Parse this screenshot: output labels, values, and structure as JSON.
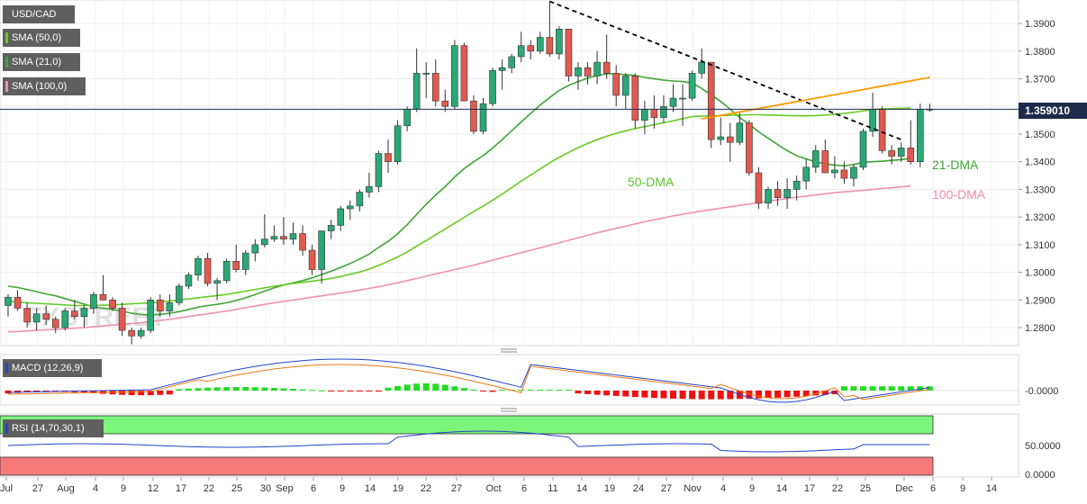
{
  "symbol": "USD/CAD",
  "price_label": "1.359010",
  "indicators": [
    {
      "label": "SMA (50,0)",
      "color": "#66cc22"
    },
    {
      "label": "SMA (21,0)",
      "color": "#3fa535"
    },
    {
      "label": "SMA (100,0)",
      "color": "#f090b0"
    }
  ],
  "macd": {
    "label": "MACD (12,26,9)",
    "axis": [
      "-0.0000"
    ]
  },
  "rsi": {
    "label": "RSI (14,70,30,1)",
    "axis": [
      "50.0000",
      "0.0000"
    ]
  },
  "watermark": "FXSTREET",
  "x_ticks": [
    "Jul",
    "27",
    "Aug",
    "4",
    "9",
    "12",
    "17",
    "22",
    "25",
    "30",
    "Sep",
    "6",
    "9",
    "14",
    "19",
    "22",
    "27",
    "Oct",
    "6",
    "11",
    "14",
    "19",
    "24",
    "27",
    "Nov",
    "4",
    "9",
    "14",
    "17",
    "22",
    "25",
    "Dec",
    "6",
    "9",
    "14"
  ],
  "chart_data": {
    "type": "candlestick",
    "ylim": [
      1.2735,
      1.3985
    ],
    "y_ticks": [
      1.39,
      1.38,
      1.37,
      1.36,
      1.35,
      1.34,
      1.33,
      1.32,
      1.31,
      1.3,
      1.29,
      1.28
    ],
    "y_tick_labels": [
      "1.3900",
      "1.3800",
      "1.3700",
      "1.3600",
      "1.3500",
      "1.3400",
      "1.3300",
      "1.3200",
      "1.3100",
      "1.3000",
      "1.2900",
      "1.2800"
    ],
    "last_price": 1.35901,
    "annotations": [
      "50-DMA",
      "21-DMA",
      "100-DMA"
    ],
    "candles": [
      [
        1.288,
        1.292,
        1.284,
        1.291
      ],
      [
        1.291,
        1.2935,
        1.286,
        1.287
      ],
      [
        1.287,
        1.289,
        1.28,
        1.282
      ],
      [
        1.282,
        1.287,
        1.279,
        1.285
      ],
      [
        1.285,
        1.288,
        1.281,
        1.283
      ],
      [
        1.283,
        1.284,
        1.278,
        1.28
      ],
      [
        1.28,
        1.287,
        1.279,
        1.286
      ],
      [
        1.286,
        1.29,
        1.283,
        1.284
      ],
      [
        1.284,
        1.288,
        1.28,
        1.287
      ],
      [
        1.287,
        1.293,
        1.285,
        1.292
      ],
      [
        1.292,
        1.299,
        1.29,
        1.29
      ],
      [
        1.29,
        1.291,
        1.286,
        1.287
      ],
      [
        1.287,
        1.289,
        1.277,
        1.279
      ],
      [
        1.279,
        1.28,
        1.274,
        1.277
      ],
      [
        1.277,
        1.28,
        1.276,
        1.279
      ],
      [
        1.279,
        1.291,
        1.278,
        1.29
      ],
      [
        1.29,
        1.292,
        1.284,
        1.286
      ],
      [
        1.286,
        1.292,
        1.284,
        1.289
      ],
      [
        1.289,
        1.296,
        1.288,
        1.295
      ],
      [
        1.295,
        1.3,
        1.294,
        1.299
      ],
      [
        1.299,
        1.306,
        1.297,
        1.305
      ],
      [
        1.305,
        1.307,
        1.295,
        1.296
      ],
      [
        1.296,
        1.298,
        1.29,
        1.297
      ],
      [
        1.297,
        1.305,
        1.296,
        1.304
      ],
      [
        1.304,
        1.31,
        1.3,
        1.301
      ],
      [
        1.301,
        1.308,
        1.299,
        1.307
      ],
      [
        1.307,
        1.312,
        1.304,
        1.31
      ],
      [
        1.31,
        1.321,
        1.309,
        1.312
      ],
      [
        1.312,
        1.317,
        1.311,
        1.313
      ],
      [
        1.313,
        1.32,
        1.31,
        1.312
      ],
      [
        1.312,
        1.318,
        1.31,
        1.314
      ],
      [
        1.314,
        1.317,
        1.306,
        1.308
      ],
      [
        1.308,
        1.31,
        1.299,
        1.301
      ],
      [
        1.301,
        1.315,
        1.296,
        1.315
      ],
      [
        1.315,
        1.319,
        1.312,
        1.317
      ],
      [
        1.317,
        1.324,
        1.315,
        1.323
      ],
      [
        1.323,
        1.326,
        1.319,
        1.324
      ],
      [
        1.324,
        1.33,
        1.322,
        1.329
      ],
      [
        1.329,
        1.336,
        1.327,
        1.331
      ],
      [
        1.331,
        1.344,
        1.329,
        1.343
      ],
      [
        1.343,
        1.348,
        1.336,
        1.34
      ],
      [
        1.34,
        1.355,
        1.339,
        1.353
      ],
      [
        1.353,
        1.36,
        1.351,
        1.359
      ],
      [
        1.359,
        1.381,
        1.358,
        1.372
      ],
      [
        1.372,
        1.376,
        1.363,
        1.372
      ],
      [
        1.372,
        1.377,
        1.36,
        1.362
      ],
      [
        1.362,
        1.366,
        1.358,
        1.36
      ],
      [
        1.36,
        1.384,
        1.359,
        1.382
      ],
      [
        1.382,
        1.383,
        1.363,
        1.362
      ],
      [
        1.362,
        1.364,
        1.35,
        1.351
      ],
      [
        1.351,
        1.363,
        1.35,
        1.361
      ],
      [
        1.361,
        1.374,
        1.36,
        1.373
      ],
      [
        1.373,
        1.377,
        1.366,
        1.374
      ],
      [
        1.374,
        1.379,
        1.372,
        1.378
      ],
      [
        1.378,
        1.387,
        1.376,
        1.382
      ],
      [
        1.382,
        1.384,
        1.377,
        1.38
      ],
      [
        1.38,
        1.387,
        1.379,
        1.385
      ],
      [
        1.385,
        1.398,
        1.378,
        1.379
      ],
      [
        1.379,
        1.389,
        1.377,
        1.388
      ],
      [
        1.388,
        1.388,
        1.369,
        1.371
      ],
      [
        1.371,
        1.376,
        1.366,
        1.374
      ],
      [
        1.374,
        1.376,
        1.368,
        1.371
      ],
      [
        1.371,
        1.38,
        1.368,
        1.376
      ],
      [
        1.376,
        1.386,
        1.37,
        1.372
      ],
      [
        1.372,
        1.375,
        1.36,
        1.364
      ],
      [
        1.364,
        1.372,
        1.359,
        1.371
      ],
      [
        1.371,
        1.372,
        1.352,
        1.355
      ],
      [
        1.355,
        1.362,
        1.35,
        1.359
      ],
      [
        1.359,
        1.364,
        1.352,
        1.356
      ],
      [
        1.356,
        1.364,
        1.354,
        1.36
      ],
      [
        1.36,
        1.368,
        1.358,
        1.363
      ],
      [
        1.363,
        1.368,
        1.353,
        1.363
      ],
      [
        1.363,
        1.373,
        1.362,
        1.372
      ],
      [
        1.372,
        1.381,
        1.37,
        1.376
      ],
      [
        1.376,
        1.375,
        1.345,
        1.348
      ],
      [
        1.348,
        1.356,
        1.346,
        1.349
      ],
      [
        1.349,
        1.354,
        1.34,
        1.347
      ],
      [
        1.347,
        1.358,
        1.346,
        1.354
      ],
      [
        1.354,
        1.355,
        1.335,
        1.336
      ],
      [
        1.336,
        1.338,
        1.323,
        1.325
      ],
      [
        1.325,
        1.331,
        1.323,
        1.33
      ],
      [
        1.33,
        1.333,
        1.324,
        1.327
      ],
      [
        1.327,
        1.334,
        1.323,
        1.33
      ],
      [
        1.33,
        1.335,
        1.326,
        1.333
      ],
      [
        1.333,
        1.341,
        1.33,
        1.338
      ],
      [
        1.338,
        1.346,
        1.336,
        1.344
      ],
      [
        1.344,
        1.348,
        1.337,
        1.336
      ],
      [
        1.336,
        1.342,
        1.334,
        1.337
      ],
      [
        1.337,
        1.34,
        1.332,
        1.334
      ],
      [
        1.334,
        1.339,
        1.331,
        1.338
      ],
      [
        1.338,
        1.352,
        1.337,
        1.351
      ],
      [
        1.351,
        1.365,
        1.349,
        1.359
      ],
      [
        1.359,
        1.36,
        1.343,
        1.344
      ],
      [
        1.344,
        1.346,
        1.339,
        1.342
      ],
      [
        1.342,
        1.347,
        1.34,
        1.345
      ],
      [
        1.345,
        1.355,
        1.339,
        1.34
      ],
      [
        1.34,
        1.361,
        1.338,
        1.359
      ],
      [
        1.359,
        1.361,
        1.358,
        1.359
      ]
    ],
    "series": [
      {
        "name": "SMA (21,0)",
        "color": "#3fa535",
        "values": [
          1.295,
          1.2945,
          1.2938,
          1.293,
          1.2922,
          1.2915,
          1.2905,
          1.2895,
          1.2885,
          1.2875,
          1.287,
          1.2866,
          1.286,
          1.2852,
          1.2848,
          1.2846,
          1.2848,
          1.2852,
          1.2858,
          1.2866,
          1.2874,
          1.288,
          1.2884,
          1.289,
          1.2898,
          1.2908,
          1.292,
          1.2932,
          1.2944,
          1.2954,
          1.2962,
          1.297,
          1.298,
          1.2992,
          1.3004,
          1.3018,
          1.3032,
          1.3048,
          1.3066,
          1.309,
          1.3112,
          1.314,
          1.3172,
          1.321,
          1.3246,
          1.328,
          1.331,
          1.3345,
          1.3375,
          1.34,
          1.3422,
          1.345,
          1.348,
          1.3512,
          1.3544,
          1.3575,
          1.3605,
          1.3632,
          1.3658,
          1.3676,
          1.369,
          1.3702,
          1.3712,
          1.3718,
          1.3718,
          1.3715,
          1.3712,
          1.3705,
          1.37,
          1.3695,
          1.3692,
          1.369,
          1.3685,
          1.3665,
          1.3642,
          1.3618,
          1.359,
          1.356,
          1.3535,
          1.3508,
          1.3485,
          1.3462,
          1.344,
          1.3422,
          1.341,
          1.34,
          1.3392,
          1.3388,
          1.3385,
          1.339,
          1.3398,
          1.34,
          1.3402,
          1.3405,
          1.3408,
          1.3412
        ]
      },
      {
        "name": "SMA (50,0)",
        "color": "#66cc22",
        "values": [
          1.2895,
          1.2892,
          1.289,
          1.2888,
          1.2886,
          1.2884,
          1.2882,
          1.288,
          1.288,
          1.288,
          1.2881,
          1.2882,
          1.2884,
          1.2886,
          1.2888,
          1.289,
          1.2893,
          1.2896,
          1.29,
          1.2904,
          1.2908,
          1.2912,
          1.2916,
          1.292,
          1.2926,
          1.2932,
          1.2938,
          1.2944,
          1.295,
          1.2955,
          1.296,
          1.2964,
          1.2968,
          1.2973,
          1.2978,
          1.2985,
          1.2993,
          1.3001,
          1.3012,
          1.3025,
          1.304,
          1.3056,
          1.3074,
          1.3095,
          1.3115,
          1.3136,
          1.3157,
          1.3178,
          1.3199,
          1.322,
          1.324,
          1.3261,
          1.3283,
          1.3306,
          1.333,
          1.3352,
          1.3374,
          1.3396,
          1.3416,
          1.3434,
          1.3451,
          1.3466,
          1.348,
          1.3492,
          1.3503,
          1.3512,
          1.352,
          1.3527,
          1.3534,
          1.3541,
          1.3548,
          1.3556,
          1.3563,
          1.3565,
          1.3566,
          1.3567,
          1.3568,
          1.3569,
          1.357,
          1.357,
          1.3569,
          1.3568,
          1.3567,
          1.3566,
          1.3566,
          1.3567,
          1.3569,
          1.3572,
          1.3575,
          1.3579,
          1.3584,
          1.3589,
          1.3591,
          1.3592,
          1.3593,
          1.3594
        ]
      },
      {
        "name": "SMA (100,0)",
        "color": "#f090b0",
        "values": [
          1.2785,
          1.2786,
          1.2788,
          1.279,
          1.2792,
          1.2794,
          1.2796,
          1.2798,
          1.28,
          1.2803,
          1.2806,
          1.2809,
          1.2812,
          1.2815,
          1.2818,
          1.2822,
          1.2826,
          1.283,
          1.2835,
          1.284,
          1.2845,
          1.285,
          1.2855,
          1.286,
          1.2866,
          1.2872,
          1.2878,
          1.2884,
          1.289,
          1.2895,
          1.29,
          1.2905,
          1.291,
          1.2915,
          1.292,
          1.2925,
          1.293,
          1.2936,
          1.2942,
          1.2948,
          1.2955,
          1.2962,
          1.297,
          1.2978,
          1.2986,
          1.2994,
          1.3002,
          1.301,
          1.3018,
          1.3026,
          1.3035,
          1.3044,
          1.3053,
          1.3062,
          1.3071,
          1.308,
          1.3089,
          1.3098,
          1.3107,
          1.3116,
          1.3125,
          1.3134,
          1.3143,
          1.3151,
          1.3159,
          1.3167,
          1.3175,
          1.3183,
          1.319,
          1.3197,
          1.3204,
          1.321,
          1.3216,
          1.3222,
          1.3227,
          1.3232,
          1.3237,
          1.3242,
          1.3247,
          1.3252,
          1.3257,
          1.3262,
          1.3267,
          1.3272,
          1.3276,
          1.328,
          1.3284,
          1.3288,
          1.3291,
          1.3294,
          1.3297,
          1.33,
          1.3303,
          1.3306,
          1.3309,
          1.3312
        ]
      }
    ],
    "trendlines": [
      {
        "name": "descending-resistance",
        "style": "dashed",
        "color": "#000000",
        "points": [
          [
            57,
            1.398
          ],
          [
            94,
            1.348
          ]
        ]
      },
      {
        "name": "ascending-resistance",
        "style": "solid",
        "color": "#ff9900",
        "points": [
          [
            73,
            1.3555
          ],
          [
            97,
            1.3705
          ]
        ]
      }
    ]
  }
}
